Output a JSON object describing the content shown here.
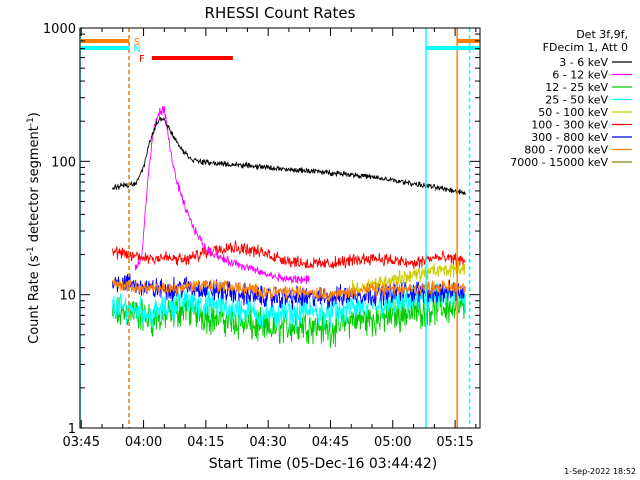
{
  "chart_data": {
    "type": "line",
    "title": "RHESSI Count Rates",
    "xlabel": "Start Time (05-Dec-16 03:44:42)",
    "ylabel_prefix": "Count Rate (s",
    "ylabel_exp1": "-1",
    "ylabel_mid": " detector segment",
    "ylabel_exp2": "-1",
    "ylabel_suffix": ")",
    "footer": "1-Sep-2022 18:52",
    "y_scale": "log",
    "ylim": [
      1,
      1000
    ],
    "xlim": [
      "03:44:42",
      "05:21:00"
    ],
    "x_ticks": [
      "03:45",
      "04:00",
      "04:15",
      "04:30",
      "04:45",
      "05:00",
      "05:15"
    ],
    "y_ticks": [
      "1",
      "10",
      "100",
      "1000"
    ],
    "legend_header": [
      "Det 3f,9f,",
      "FDecim 1, Att 0"
    ],
    "legend_position": "top-right",
    "series": [
      {
        "name": "3 - 6 keV",
        "color": "#000000",
        "points": [
          [
            "03:52:30",
            62
          ],
          [
            "03:55:00",
            66
          ],
          [
            "03:58:00",
            68
          ],
          [
            "04:00:00",
            90
          ],
          [
            "04:01:30",
            140
          ],
          [
            "04:03:00",
            190
          ],
          [
            "04:04:30",
            215
          ],
          [
            "04:06:00",
            180
          ],
          [
            "04:08:00",
            140
          ],
          [
            "04:10:00",
            115
          ],
          [
            "04:12:00",
            102
          ],
          [
            "04:15:00",
            98
          ],
          [
            "04:20:00",
            95
          ],
          [
            "04:25:00",
            93
          ],
          [
            "04:30:00",
            90
          ],
          [
            "04:35:00",
            86
          ],
          [
            "04:40:00",
            85
          ],
          [
            "04:45:00",
            82
          ],
          [
            "04:50:00",
            80
          ],
          [
            "04:55:00",
            76
          ],
          [
            "05:00:00",
            72
          ],
          [
            "05:05:00",
            68
          ],
          [
            "05:10:00",
            64
          ],
          [
            "05:14:00",
            61
          ],
          [
            "05:17:30",
            58
          ]
        ]
      },
      {
        "name": "6 - 12 keV",
        "color": "#ff00ff",
        "points": [
          [
            "03:58:00",
            16
          ],
          [
            "03:59:30",
            18
          ],
          [
            "04:01:00",
            70
          ],
          [
            "04:02:30",
            180
          ],
          [
            "04:04:00",
            240
          ],
          [
            "04:05:00",
            245
          ],
          [
            "04:06:30",
            120
          ],
          [
            "04:08:00",
            70
          ],
          [
            "04:10:00",
            45
          ],
          [
            "04:12:00",
            32
          ],
          [
            "04:15:00",
            22
          ],
          [
            "04:20:00",
            18
          ],
          [
            "04:25:00",
            16
          ],
          [
            "04:30:00",
            14
          ],
          [
            "04:35:00",
            13
          ],
          [
            "04:40:00",
            13
          ]
        ]
      },
      {
        "name": "12 - 25 keV",
        "color": "#00cc00",
        "points": [
          [
            "03:52:30",
            7
          ],
          [
            "03:57:00",
            7.5
          ],
          [
            "04:02:00",
            6.5
          ],
          [
            "04:06:00",
            7
          ],
          [
            "04:10:00",
            8
          ],
          [
            "04:15:00",
            7
          ],
          [
            "04:20:00",
            6.5
          ],
          [
            "04:25:00",
            6
          ],
          [
            "04:30:00",
            5.5
          ],
          [
            "04:35:00",
            5.8
          ],
          [
            "04:40:00",
            6
          ],
          [
            "04:45:00",
            5.5
          ],
          [
            "04:50:00",
            6.5
          ],
          [
            "04:55:00",
            6.5
          ],
          [
            "05:00:00",
            7
          ],
          [
            "05:05:00",
            7.5
          ],
          [
            "05:10:00",
            8
          ],
          [
            "05:17:30",
            8
          ]
        ]
      },
      {
        "name": "25 - 50 keV",
        "color": "#00ffff",
        "points": [
          [
            "03:52:30",
            8
          ],
          [
            "03:57:00",
            8
          ],
          [
            "04:02:00",
            7
          ],
          [
            "04:06:00",
            8
          ],
          [
            "04:10:00",
            9
          ],
          [
            "04:15:00",
            8.5
          ],
          [
            "04:20:00",
            8
          ],
          [
            "04:25:00",
            7.5
          ],
          [
            "04:30:00",
            7
          ],
          [
            "04:35:00",
            7.2
          ],
          [
            "04:40:00",
            7.5
          ],
          [
            "04:45:00",
            7.2
          ],
          [
            "04:50:00",
            8
          ],
          [
            "04:55:00",
            8
          ],
          [
            "05:00:00",
            8.5
          ],
          [
            "05:05:00",
            9
          ],
          [
            "05:10:00",
            9.5
          ],
          [
            "05:17:30",
            9.5
          ]
        ]
      },
      {
        "name": "50 - 100 keV",
        "color": "#cccc00",
        "points": [
          [
            "04:50:00",
            11
          ],
          [
            "04:55:00",
            12
          ],
          [
            "05:00:00",
            13
          ],
          [
            "05:05:00",
            14
          ],
          [
            "05:10:00",
            15
          ],
          [
            "05:17:30",
            16
          ]
        ]
      },
      {
        "name": "100 - 300 keV",
        "color": "#ff0000",
        "points": [
          [
            "03:52:30",
            21
          ],
          [
            "03:55:00",
            20
          ],
          [
            "04:00:00",
            19
          ],
          [
            "04:05:00",
            19
          ],
          [
            "04:10:00",
            18
          ],
          [
            "04:15:00",
            21
          ],
          [
            "04:20:00",
            23
          ],
          [
            "04:25:00",
            22
          ],
          [
            "04:30:00",
            20
          ],
          [
            "04:35:00",
            18
          ],
          [
            "04:40:00",
            17
          ],
          [
            "04:45:00",
            17
          ],
          [
            "04:50:00",
            18
          ],
          [
            "04:55:00",
            19
          ],
          [
            "05:00:00",
            18
          ],
          [
            "05:05:00",
            17
          ],
          [
            "05:10:00",
            19
          ],
          [
            "05:17:30",
            18
          ]
        ]
      },
      {
        "name": "300 - 800 keV",
        "color": "#0000ff",
        "points": [
          [
            "03:52:30",
            13
          ],
          [
            "03:57:00",
            12
          ],
          [
            "04:02:00",
            11
          ],
          [
            "04:06:00",
            11
          ],
          [
            "04:10:00",
            11.5
          ],
          [
            "04:15:00",
            11
          ],
          [
            "04:20:00",
            10.5
          ],
          [
            "04:25:00",
            10
          ],
          [
            "04:30:00",
            9.5
          ],
          [
            "04:35:00",
            9.5
          ],
          [
            "04:40:00",
            9.5
          ],
          [
            "04:45:00",
            9.5
          ],
          [
            "04:50:00",
            10
          ],
          [
            "04:55:00",
            10
          ],
          [
            "05:00:00",
            10.5
          ],
          [
            "05:05:00",
            10.5
          ],
          [
            "05:10:00",
            10.5
          ],
          [
            "05:17:30",
            10.5
          ]
        ]
      },
      {
        "name": "800 - 7000 keV",
        "color": "#ff8000",
        "points": [
          [
            "03:52:30",
            12
          ],
          [
            "03:57:00",
            11.5
          ],
          [
            "04:02:00",
            11
          ],
          [
            "04:06:00",
            11
          ],
          [
            "04:10:00",
            11.5
          ],
          [
            "04:15:00",
            12
          ],
          [
            "04:20:00",
            11.5
          ],
          [
            "04:25:00",
            11
          ],
          [
            "04:30:00",
            10.5
          ],
          [
            "04:35:00",
            10.5
          ],
          [
            "04:40:00",
            10.5
          ],
          [
            "04:45:00",
            10
          ],
          [
            "04:50:00",
            10.5
          ],
          [
            "04:55:00",
            11
          ],
          [
            "05:00:00",
            11
          ],
          [
            "05:05:00",
            11
          ],
          [
            "05:10:00",
            11.5
          ],
          [
            "05:17:30",
            11.5
          ]
        ]
      },
      {
        "name": "7000 - 15000 keV",
        "color": "#808000",
        "points": []
      }
    ],
    "vertical_lines": [
      {
        "time": "03:44:42",
        "color": "#00ffff",
        "style": "solid"
      },
      {
        "time": "03:56:30",
        "color": "#00ffff",
        "style": "dashed"
      },
      {
        "time": "03:56:30",
        "color": "#ff8000",
        "style": "dashed"
      },
      {
        "time": "05:08:00",
        "color": "#00ffff",
        "style": "solid"
      },
      {
        "time": "05:15:30",
        "color": "#ff8000",
        "style": "solid"
      },
      {
        "time": "05:18:30",
        "color": "#00ffff",
        "style": "dashed"
      }
    ],
    "flag_bars": [
      {
        "label": "S",
        "label_color": "#ff8000",
        "color": "#ff8000",
        "level": 1,
        "segments": [
          [
            "03:44:42",
            "03:56:30"
          ],
          [
            "05:15:30",
            "05:21:00"
          ]
        ]
      },
      {
        "label": "N",
        "label_color": "#00ffff",
        "color": "#00ffff",
        "level": 2,
        "segments": [
          [
            "03:44:42",
            "03:56:30"
          ],
          [
            "05:08:00",
            "05:21:00"
          ]
        ]
      },
      {
        "label": "F",
        "label_color": "#ff0000",
        "color": "#ff0000",
        "level": 3,
        "segments": [
          [
            "04:02:00",
            "04:21:30"
          ]
        ]
      }
    ]
  }
}
